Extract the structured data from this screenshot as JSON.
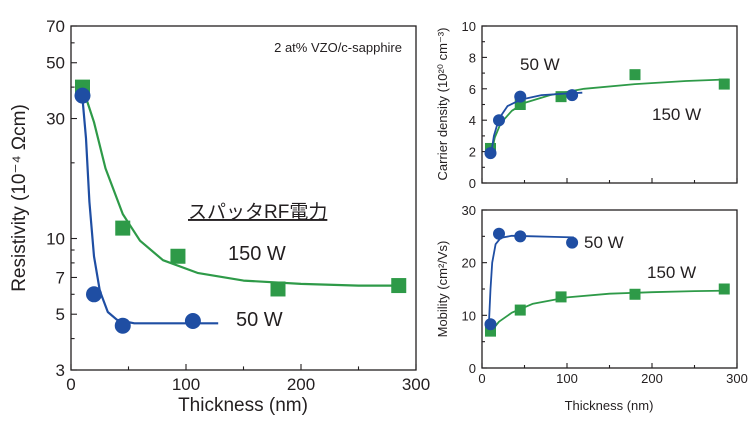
{
  "colors": {
    "green": "#2e9a48",
    "blue": "#1f4ea3",
    "axis": "#231f20"
  },
  "chart_data": [
    {
      "type": "scatter",
      "log_y": true,
      "annotation": "2 at% VZO/c-sapphire",
      "legend_title": "スパッタRF電力",
      "xlabel": "Thickness (nm)",
      "ylabel": "Resistivity (10⁻⁴ Ωcm)",
      "xlim": [
        0,
        300
      ],
      "ylim": [
        3,
        70
      ],
      "x_ticks": [
        "0",
        "100",
        "200",
        "300"
      ],
      "y_ticks": [
        "3",
        "5",
        "7",
        "10",
        "30",
        "50",
        "70"
      ],
      "series": [
        {
          "name": "150 W",
          "x": [
            10,
            45,
            93,
            180,
            285
          ],
          "y": [
            40,
            11,
            8.5,
            6.3,
            6.5
          ],
          "fit": [
            [
              10,
              40
            ],
            [
              20,
              29
            ],
            [
              30,
              19
            ],
            [
              45,
              12.5
            ],
            [
              60,
              9.8
            ],
            [
              80,
              8.2
            ],
            [
              110,
              7.3
            ],
            [
              150,
              6.8
            ],
            [
              200,
              6.6
            ],
            [
              250,
              6.5
            ],
            [
              290,
              6.5
            ]
          ]
        },
        {
          "name": "50 W",
          "x": [
            10,
            20,
            45,
            106
          ],
          "y": [
            37,
            6.0,
            4.5,
            4.7
          ],
          "fit": [
            [
              10,
              36
            ],
            [
              13,
              25
            ],
            [
              16,
              14
            ],
            [
              20,
              8.5
            ],
            [
              25,
              6.2
            ],
            [
              32,
              5.1
            ],
            [
              40,
              4.75
            ],
            [
              55,
              4.6
            ],
            [
              80,
              4.6
            ],
            [
              128,
              4.6
            ]
          ]
        }
      ]
    },
    {
      "type": "scatter",
      "xlabel": "",
      "ylabel": "Carrier density (10²⁰ cm⁻³)",
      "xlim": [
        0,
        300
      ],
      "ylim": [
        0,
        10
      ],
      "y_ticks": [
        "0",
        "2",
        "4",
        "6",
        "8",
        "10"
      ],
      "series": [
        {
          "name": "150 W",
          "x": [
            10,
            45,
            93,
            180,
            285
          ],
          "y": [
            2.2,
            5.0,
            5.5,
            6.9,
            6.3
          ],
          "fit": [
            [
              10,
              1.6
            ],
            [
              15,
              2.9
            ],
            [
              22,
              3.8
            ],
            [
              35,
              4.6
            ],
            [
              50,
              5.1
            ],
            [
              80,
              5.6
            ],
            [
              120,
              6.0
            ],
            [
              180,
              6.3
            ],
            [
              240,
              6.5
            ],
            [
              290,
              6.6
            ]
          ]
        },
        {
          "name": "50 W",
          "x": [
            10,
            20,
            45,
            106
          ],
          "y": [
            1.9,
            4.0,
            5.5,
            5.6
          ],
          "fit": [
            [
              10,
              1.6
            ],
            [
              14,
              3.0
            ],
            [
              20,
              4.1
            ],
            [
              30,
              4.9
            ],
            [
              45,
              5.3
            ],
            [
              70,
              5.6
            ],
            [
              100,
              5.7
            ],
            [
              118,
              5.75
            ]
          ]
        }
      ]
    },
    {
      "type": "scatter",
      "xlabel": "Thickness (nm)",
      "ylabel": "Mobility (cm²/Vs)",
      "xlim": [
        0,
        300
      ],
      "ylim": [
        0,
        30
      ],
      "x_ticks": [
        "0",
        "100",
        "200",
        "300"
      ],
      "y_ticks": [
        "0",
        "10",
        "20",
        "30"
      ],
      "series": [
        {
          "name": "150 W",
          "x": [
            10,
            45,
            93,
            180,
            285
          ],
          "y": [
            7.0,
            11.0,
            13.5,
            14.0,
            15.0
          ],
          "fit": [
            [
              10,
              6.8
            ],
            [
              20,
              8.8
            ],
            [
              35,
              10.5
            ],
            [
              60,
              12.2
            ],
            [
              100,
              13.4
            ],
            [
              150,
              14.1
            ],
            [
              200,
              14.4
            ],
            [
              250,
              14.6
            ],
            [
              290,
              14.7
            ]
          ]
        },
        {
          "name": "50 W",
          "x": [
            10,
            20,
            45,
            106
          ],
          "y": [
            8.3,
            25.5,
            25.0,
            23.8
          ],
          "fit": [
            [
              8,
              8.0
            ],
            [
              10,
              15
            ],
            [
              12,
              20
            ],
            [
              16,
              23.5
            ],
            [
              22,
              24.7
            ],
            [
              35,
              25.1
            ],
            [
              60,
              25.0
            ],
            [
              85,
              24.9
            ],
            [
              108,
              24.8
            ]
          ]
        }
      ]
    }
  ]
}
